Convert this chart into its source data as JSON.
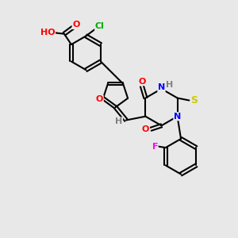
{
  "bg_color": "#e8e8e8",
  "bond_color": "#000000",
  "atom_colors": {
    "O": "#ff0000",
    "N": "#0000ff",
    "S": "#cccc00",
    "Cl": "#00aa00",
    "F": "#ff00ff",
    "H": "#808080",
    "C": "#000000"
  },
  "figsize": [
    3.0,
    3.0
  ],
  "dpi": 100
}
